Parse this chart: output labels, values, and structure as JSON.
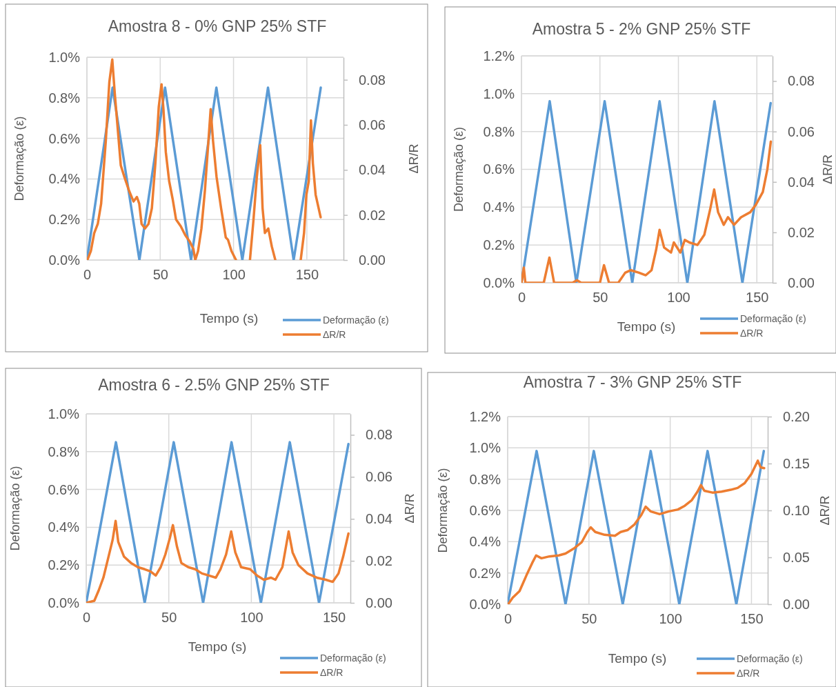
{
  "chart_data": [
    {
      "type": "line",
      "title": "Amostra 8 - 0% GNP 25% STF",
      "xlabel": "Tempo (s)",
      "ylabel": "Deformação (ε)",
      "y2label": "ΔR/R",
      "legend": "bottom right",
      "grid": true,
      "xlim": [
        0,
        175
      ],
      "xticks": [
        0,
        50,
        100,
        150
      ],
      "ylim": [
        0,
        1.0
      ],
      "yticks": [
        {
          "value": 0,
          "label": "0.0%"
        },
        {
          "value": 0.2,
          "label": "0.2%"
        },
        {
          "value": 0.4,
          "label": "0.4%"
        },
        {
          "value": 0.6,
          "label": "0.6%"
        },
        {
          "value": 0.8,
          "label": "0.8%"
        },
        {
          "value": 1.0,
          "label": "1.0%"
        }
      ],
      "y2lim": [
        0,
        0.09
      ],
      "y2ticks": [
        {
          "value": 0,
          "label": "0.00"
        },
        {
          "value": 0.02,
          "label": "0.02"
        },
        {
          "value": 0.04,
          "label": "0.04"
        },
        {
          "value": 0.06,
          "label": "0.06"
        },
        {
          "value": 0.08,
          "label": "0.08"
        }
      ],
      "series": [
        {
          "name": "Deformação (ε)",
          "color": "#5b9bd5",
          "x": [
            0,
            17.5,
            35.8,
            53.3,
            71,
            88.3,
            106,
            123.5,
            141,
            159.5
          ],
          "values": [
            0,
            0.85,
            0,
            0.85,
            0,
            0.85,
            0,
            0.85,
            0,
            0.85
          ]
        },
        {
          "name": "ΔR/R",
          "color": "#ed7d31",
          "axis": "y2",
          "x": [
            0.3,
            2.7,
            5,
            7.4,
            9.7,
            12.9,
            15.3,
            17.3,
            19,
            20.8,
            23.1,
            25.5,
            28.6,
            31.8,
            34.1,
            35.7,
            37.3,
            39.6,
            42,
            44.3,
            46.7,
            49,
            50.9,
            52.2,
            53.8,
            56.1,
            58.5,
            60.8,
            64,
            67.1,
            70.3,
            72.6,
            73.9,
            75.8,
            78.1,
            80.5,
            82.9,
            84.4,
            86,
            88.4,
            91.5,
            94.7,
            96.2,
            98.6,
            101.7,
            106,
            111.2,
            113.5,
            115.9,
            118.2,
            119.8,
            121.4,
            123.7,
            126.1,
            128.5,
            137,
            145.8,
            148.1,
            149.7,
            151.3,
            152.8,
            154.1,
            156,
            159.4
          ],
          "values": [
            0,
            0.004,
            0.012,
            0.016,
            0.025,
            0.053,
            0.079,
            0.089,
            0.074,
            0.06,
            0.042,
            0.037,
            0.031,
            0.026,
            0.028,
            0.025,
            0.016,
            0.014,
            0.016,
            0.023,
            0.043,
            0.068,
            0.078,
            0.067,
            0.048,
            0.035,
            0.027,
            0.018,
            0.015,
            0.011,
            0.008,
            0.005,
            0,
            0.004,
            0.014,
            0.031,
            0.053,
            0.067,
            0.053,
            0.037,
            0.023,
            0.01,
            0.009,
            0.004,
            0,
            null,
            0,
            0.017,
            0.037,
            0.051,
            0.023,
            0.012,
            0.014,
            0.006,
            0,
            null,
            0,
            0.012,
            0.029,
            0.035,
            0.062,
            0.043,
            0.029,
            0.019
          ]
        }
      ]
    },
    {
      "type": "line",
      "title": "Amostra 5 - 2% GNP 25% STF",
      "xlabel": "Tempo (s)",
      "ylabel": "Deformação (ε)",
      "y2label": "ΔR/R",
      "legend": "bottom right",
      "grid": true,
      "xlim": [
        0,
        160
      ],
      "xticks": [
        0,
        50,
        100,
        150
      ],
      "ylim": [
        0,
        1.2
      ],
      "yticks": [
        {
          "value": 0,
          "label": "0.0%"
        },
        {
          "value": 0.2,
          "label": "0.2%"
        },
        {
          "value": 0.4,
          "label": "0.4%"
        },
        {
          "value": 0.6,
          "label": "0.6%"
        },
        {
          "value": 0.8,
          "label": "0.8%"
        },
        {
          "value": 1.0,
          "label": "1.0%"
        },
        {
          "value": 1.2,
          "label": "1.2%"
        }
      ],
      "y2lim": [
        0,
        0.09
      ],
      "y2ticks": [
        {
          "value": 0,
          "label": "0.00"
        },
        {
          "value": 0.02,
          "label": "0.02"
        },
        {
          "value": 0.04,
          "label": "0.04"
        },
        {
          "value": 0.06,
          "label": "0.06"
        },
        {
          "value": 0.08,
          "label": "0.08"
        }
      ],
      "series": [
        {
          "name": "Deformação (ε)",
          "color": "#5b9bd5",
          "x": [
            0,
            18,
            35,
            53,
            70.6,
            88,
            105.7,
            123,
            140.8,
            158.8
          ],
          "values": [
            0,
            0.96,
            0,
            0.96,
            0,
            0.96,
            0,
            0.96,
            0,
            0.95
          ]
        },
        {
          "name": "ΔR/R",
          "color": "#ed7d31",
          "axis": "y2",
          "x": [
            0,
            1.5,
            2.5,
            14.2,
            17.8,
            20.8,
            26.6,
            32.5,
            35.4,
            38,
            50,
            52.6,
            55.8,
            61.7,
            66.1,
            69.7,
            74.9,
            79.2,
            82.9,
            85.8,
            88,
            90.9,
            95.3,
            97.1,
            101.2,
            104.1,
            107,
            112.1,
            116.5,
            120.2,
            122.8,
            125.3,
            128.9,
            131.6,
            135.5,
            139.9,
            145.8,
            149.4,
            153.8,
            156.7,
            158.9
          ],
          "values": [
            0,
            0.006,
            0,
            0,
            0.01,
            0,
            0,
            0,
            0.001,
            0,
            0,
            0.007,
            0,
            0,
            0.004,
            0.005,
            0.004,
            0.003,
            0.005,
            0.013,
            0.021,
            0.014,
            0.012,
            0.016,
            0.012,
            0.017,
            0.016,
            0.015,
            0.019,
            0.029,
            0.037,
            0.028,
            0.023,
            0.026,
            0.023,
            0.026,
            0.028,
            0.031,
            0.036,
            0.045,
            0.056
          ]
        }
      ]
    },
    {
      "type": "line",
      "title": "Amostra 6 - 2.5% GNP 25% STF",
      "xlabel": "Tempo (s)",
      "ylabel": "Deformação (ε)",
      "y2label": "ΔR/R",
      "legend": "bottom right",
      "grid": true,
      "xlim": [
        0,
        160
      ],
      "xticks": [
        0,
        50,
        100,
        150
      ],
      "ylim": [
        0,
        1.0
      ],
      "yticks": [
        {
          "value": 0,
          "label": "0.0%"
        },
        {
          "value": 0.2,
          "label": "0.2%"
        },
        {
          "value": 0.4,
          "label": "0.4%"
        },
        {
          "value": 0.6,
          "label": "0.6%"
        },
        {
          "value": 0.8,
          "label": "0.8%"
        },
        {
          "value": 1.0,
          "label": "1.0%"
        }
      ],
      "y2lim": [
        0,
        0.09
      ],
      "y2ticks": [
        {
          "value": 0,
          "label": "0.00"
        },
        {
          "value": 0.02,
          "label": "0.02"
        },
        {
          "value": 0.04,
          "label": "0.04"
        },
        {
          "value": 0.06,
          "label": "0.06"
        },
        {
          "value": 0.08,
          "label": "0.08"
        }
      ],
      "series": [
        {
          "name": "Deformação (ε)",
          "color": "#5b9bd5",
          "x": [
            0,
            18,
            35.4,
            53,
            70.8,
            88,
            105.8,
            123.3,
            141,
            158.8
          ],
          "values": [
            0,
            0.85,
            0,
            0.85,
            0,
            0.85,
            0,
            0.85,
            0,
            0.84
          ]
        },
        {
          "name": "ΔR/R",
          "color": "#ed7d31",
          "axis": "y2",
          "x": [
            0,
            4.9,
            7.6,
            10.4,
            13.2,
            16,
            17.8,
            19.4,
            22.9,
            27.1,
            31.3,
            35.4,
            38.9,
            42.1,
            45.1,
            47.9,
            50.7,
            52.5,
            54.9,
            57.6,
            61.8,
            66,
            70.1,
            74.3,
            78.5,
            81.3,
            84.7,
            87.8,
            90.3,
            93.8,
            99.3,
            103.5,
            107.6,
            111.8,
            114.6,
            118.8,
            122.6,
            125,
            128.5,
            134,
            139.6,
            145.1,
            149.3,
            152.8,
            155.6,
            158.8
          ],
          "values": [
            0,
            0.001,
            0.006,
            0.012,
            0.021,
            0.03,
            0.039,
            0.029,
            0.022,
            0.019,
            0.017,
            0.016,
            0.015,
            0.013,
            0.017,
            0.023,
            0.031,
            0.037,
            0.027,
            0.019,
            0.017,
            0.016,
            0.014,
            0.013,
            0.012,
            0.016,
            0.023,
            0.034,
            0.024,
            0.017,
            0.016,
            0.013,
            0.011,
            0.012,
            0.011,
            0.017,
            0.034,
            0.024,
            0.018,
            0.014,
            0.012,
            0.011,
            0.01,
            0.014,
            0.022,
            0.033
          ]
        }
      ]
    },
    {
      "type": "line",
      "title": "Amostra 7 - 3% GNP 25% STF",
      "xlabel": "Tempo (s)",
      "ylabel": "Deformação (ε)",
      "y2label": "ΔR/R",
      "legend": "bottom right",
      "grid": true,
      "xlim": [
        0,
        160
      ],
      "xticks": [
        0,
        50,
        100,
        150
      ],
      "ylim": [
        0,
        1.2
      ],
      "yticks": [
        {
          "value": 0,
          "label": "0.0%"
        },
        {
          "value": 0.2,
          "label": "0.2%"
        },
        {
          "value": 0.4,
          "label": "0.4%"
        },
        {
          "value": 0.6,
          "label": "0.6%"
        },
        {
          "value": 0.8,
          "label": "0.8%"
        },
        {
          "value": 1.0,
          "label": "1.0%"
        },
        {
          "value": 1.2,
          "label": "1.2%"
        }
      ],
      "y2lim": [
        0,
        0.2
      ],
      "y2ticks": [
        {
          "value": 0,
          "label": "0.00"
        },
        {
          "value": 0.05,
          "label": "0.05"
        },
        {
          "value": 0.1,
          "label": "0.10"
        },
        {
          "value": 0.15,
          "label": "0.15"
        },
        {
          "value": 0.2,
          "label": "0.20"
        }
      ],
      "series": [
        {
          "name": "Deformação (ε)",
          "color": "#5b9bd5",
          "x": [
            0,
            17.8,
            35.6,
            53,
            70.8,
            88,
            105.6,
            123,
            140.7,
            157.6
          ],
          "values": [
            0,
            0.98,
            0,
            0.98,
            0,
            0.98,
            0,
            0.98,
            0,
            0.98
          ]
        },
        {
          "name": "ΔR/R",
          "color": "#ed7d31",
          "axis": "y2",
          "x": [
            0.3,
            3.1,
            7.3,
            11.6,
            15.1,
            17.5,
            20.8,
            25.7,
            31.4,
            35.6,
            41.2,
            45.5,
            49,
            51.1,
            53.9,
            59.6,
            66,
            69.5,
            73.7,
            78,
            82.2,
            84.9,
            87.9,
            93.5,
            99.2,
            104.8,
            109,
            113.3,
            116.8,
            118.9,
            121,
            126,
            131.6,
            137.3,
            141.5,
            145.8,
            150,
            153.9,
            155.6,
            157.8
          ],
          "values": [
            0,
            0.007,
            0.014,
            0.031,
            0.044,
            0.052,
            0.049,
            0.051,
            0.052,
            0.054,
            0.06,
            0.066,
            0.077,
            0.082,
            0.077,
            0.074,
            0.073,
            0.077,
            0.079,
            0.085,
            0.095,
            0.104,
            0.099,
            0.096,
            0.099,
            0.101,
            0.105,
            0.111,
            0.12,
            0.127,
            0.121,
            0.119,
            0.12,
            0.122,
            0.124,
            0.129,
            0.139,
            0.153,
            0.146,
            0.145
          ]
        }
      ]
    }
  ]
}
